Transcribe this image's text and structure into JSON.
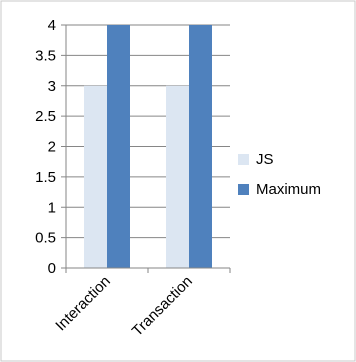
{
  "chart_data": {
    "type": "bar",
    "categories": [
      "Interaction",
      "Transaction"
    ],
    "series": [
      {
        "name": "JS",
        "values": [
          3,
          3
        ],
        "color": "#dce6f2"
      },
      {
        "name": "Maximum",
        "values": [
          4,
          4
        ],
        "color": "#4f81bd"
      }
    ],
    "y_ticks": [
      "0",
      "0.5",
      "1",
      "1.5",
      "2",
      "2.5",
      "3",
      "3.5",
      "4"
    ],
    "ylim": [
      0,
      4
    ],
    "grid": true,
    "legend_position": "right",
    "gridline_color": "#868686",
    "axis_color": "#868686"
  }
}
